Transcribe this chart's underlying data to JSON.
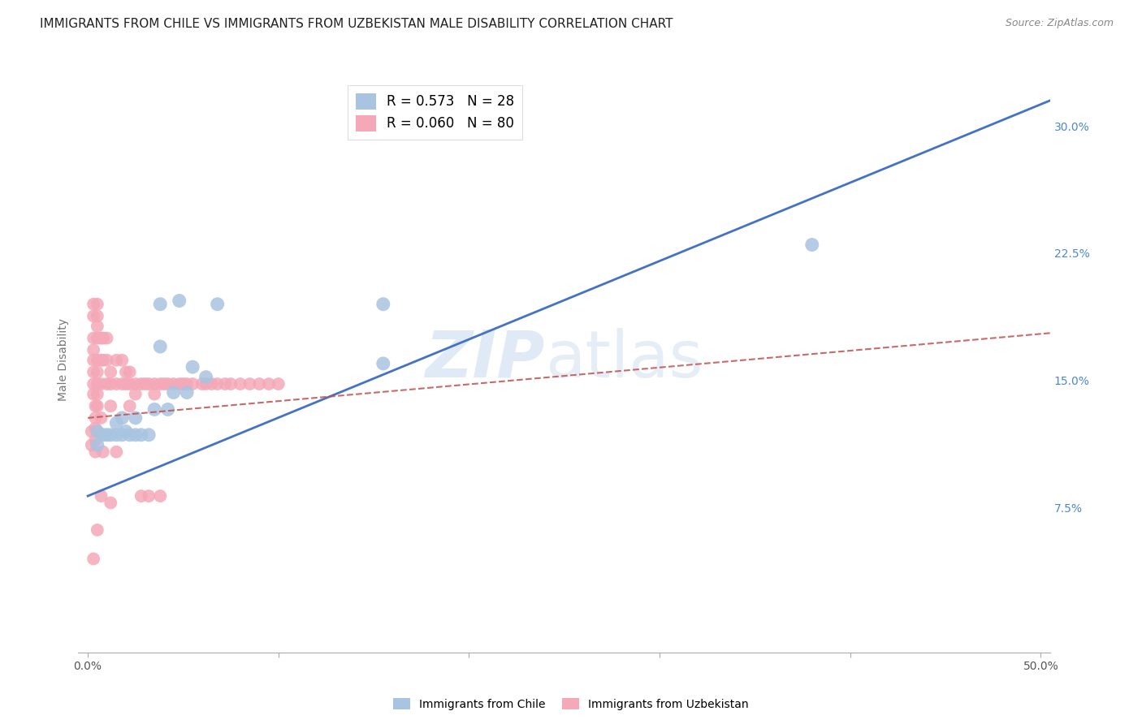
{
  "title": "IMMIGRANTS FROM CHILE VS IMMIGRANTS FROM UZBEKISTAN MALE DISABILITY CORRELATION CHART",
  "source": "Source: ZipAtlas.com",
  "ylabel": "Male Disability",
  "xlim": [
    -0.005,
    0.505
  ],
  "ylim": [
    -0.01,
    0.335
  ],
  "xticks": [
    0.0,
    0.1,
    0.2,
    0.3,
    0.4,
    0.5
  ],
  "xticklabels": [
    "0.0%",
    "",
    "",
    "",
    "",
    "50.0%"
  ],
  "ytick_positions": [
    0.0,
    0.075,
    0.15,
    0.225,
    0.3
  ],
  "yticklabels": [
    "",
    "7.5%",
    "15.0%",
    "22.5%",
    "30.0%"
  ],
  "chile_R": 0.573,
  "chile_N": 28,
  "uzbekistan_R": 0.06,
  "uzbekistan_N": 80,
  "chile_color": "#a8c4e0",
  "chile_line_color": "#4472c4",
  "uzbekistan_color": "#f4a8b8",
  "uzbekistan_line_color": "#c0504d",
  "background_color": "#ffffff",
  "grid_color": "#d9d9d9",
  "title_fontsize": 11,
  "axis_label_fontsize": 10,
  "tick_fontsize": 10,
  "right_tick_color": "#4d88cc",
  "chile_scatter_x": [
    0.005,
    0.005,
    0.008,
    0.01,
    0.012,
    0.015,
    0.015,
    0.018,
    0.018,
    0.02,
    0.022,
    0.025,
    0.025,
    0.028,
    0.032,
    0.035,
    0.038,
    0.038,
    0.042,
    0.045,
    0.048,
    0.052,
    0.055,
    0.062,
    0.068,
    0.155,
    0.155,
    0.38
  ],
  "chile_scatter_y": [
    0.12,
    0.112,
    0.118,
    0.118,
    0.118,
    0.118,
    0.125,
    0.118,
    0.128,
    0.12,
    0.118,
    0.118,
    0.128,
    0.118,
    0.118,
    0.133,
    0.17,
    0.195,
    0.133,
    0.143,
    0.197,
    0.143,
    0.158,
    0.152,
    0.195,
    0.16,
    0.195,
    0.23
  ],
  "uzbekistan_scatter_x": [
    0.002,
    0.002,
    0.003,
    0.003,
    0.003,
    0.003,
    0.003,
    0.003,
    0.003,
    0.003,
    0.003,
    0.004,
    0.004,
    0.004,
    0.004,
    0.004,
    0.005,
    0.005,
    0.005,
    0.005,
    0.005,
    0.005,
    0.005,
    0.005,
    0.005,
    0.005,
    0.007,
    0.007,
    0.007,
    0.007,
    0.007,
    0.008,
    0.008,
    0.008,
    0.01,
    0.01,
    0.01,
    0.012,
    0.012,
    0.012,
    0.012,
    0.015,
    0.015,
    0.015,
    0.018,
    0.018,
    0.02,
    0.02,
    0.022,
    0.022,
    0.022,
    0.025,
    0.025,
    0.028,
    0.028,
    0.03,
    0.032,
    0.032,
    0.035,
    0.035,
    0.038,
    0.038,
    0.04,
    0.042,
    0.045,
    0.048,
    0.05,
    0.052,
    0.055,
    0.06,
    0.062,
    0.065,
    0.068,
    0.072,
    0.075,
    0.08,
    0.085,
    0.09,
    0.095,
    0.1
  ],
  "uzbekistan_scatter_y": [
    0.12,
    0.112,
    0.195,
    0.188,
    0.175,
    0.168,
    0.162,
    0.155,
    0.148,
    0.142,
    0.045,
    0.135,
    0.128,
    0.122,
    0.115,
    0.108,
    0.195,
    0.188,
    0.182,
    0.175,
    0.162,
    0.155,
    0.148,
    0.142,
    0.135,
    0.062,
    0.175,
    0.162,
    0.148,
    0.128,
    0.082,
    0.175,
    0.162,
    0.108,
    0.175,
    0.162,
    0.148,
    0.155,
    0.148,
    0.135,
    0.078,
    0.162,
    0.148,
    0.108,
    0.162,
    0.148,
    0.155,
    0.148,
    0.155,
    0.148,
    0.135,
    0.148,
    0.142,
    0.148,
    0.082,
    0.148,
    0.148,
    0.082,
    0.148,
    0.142,
    0.148,
    0.082,
    0.148,
    0.148,
    0.148,
    0.148,
    0.148,
    0.148,
    0.148,
    0.148,
    0.148,
    0.148,
    0.148,
    0.148,
    0.148,
    0.148,
    0.148,
    0.148,
    0.148,
    0.148
  ],
  "chile_line_x0": 0.0,
  "chile_line_y0": 0.082,
  "chile_line_x1": 0.505,
  "chile_line_y1": 0.315,
  "uzb_line_x0": 0.0,
  "uzb_line_y0": 0.128,
  "uzb_line_x1": 0.505,
  "uzb_line_y1": 0.178
}
